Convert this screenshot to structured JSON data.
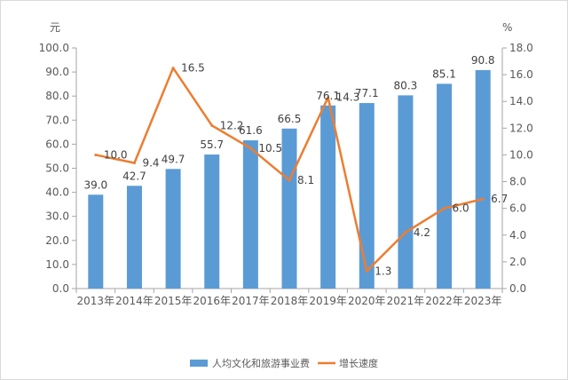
{
  "chart_data": {
    "type": "bar",
    "categories": [
      "2013年",
      "2014年",
      "2015年",
      "2016年",
      "2017年",
      "2018年",
      "2019年",
      "2020年",
      "2021年",
      "2022年",
      "2023年"
    ],
    "series": [
      {
        "name": "人均文化和旅游事业费",
        "type": "bar",
        "axis": "left",
        "color": "#5b9bd5",
        "values": [
          39.0,
          42.7,
          49.7,
          55.7,
          61.6,
          66.5,
          76.1,
          77.1,
          80.3,
          85.1,
          90.8
        ],
        "labels": [
          "39.0",
          "42.7",
          "49.7",
          "55.7",
          "61.6",
          "66.5",
          "76.1",
          "77.1",
          "80.3",
          "85.1",
          "90.8"
        ]
      },
      {
        "name": "增长速度",
        "type": "line",
        "axis": "right",
        "color": "#ed7d31",
        "values": [
          10.0,
          9.4,
          16.5,
          12.2,
          10.5,
          8.1,
          14.3,
          1.3,
          4.2,
          6.0,
          6.7
        ],
        "labels": [
          "10.0",
          "9.4",
          "16.5",
          "12.2",
          "10.5",
          "8.1",
          "14.3",
          "1.3",
          "4.2",
          "6.0",
          "6.7"
        ]
      }
    ],
    "y_left": {
      "unit": "元",
      "ylim": [
        0,
        100
      ],
      "ticks": [
        "0.0",
        "10.0",
        "20.0",
        "30.0",
        "40.0",
        "50.0",
        "60.0",
        "70.0",
        "80.0",
        "90.0",
        "100.0"
      ]
    },
    "y_right": {
      "unit": "%",
      "ylim": [
        0,
        18
      ],
      "ticks": [
        "0.0",
        "2.0",
        "4.0",
        "6.0",
        "8.0",
        "10.0",
        "12.0",
        "14.0",
        "16.0",
        "18.0"
      ]
    },
    "grid": false,
    "legend": "bottom"
  }
}
